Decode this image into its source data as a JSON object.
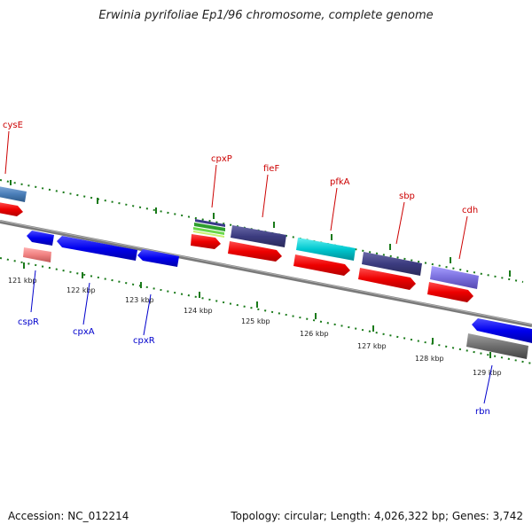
{
  "title": "Erwinia pyrifoliae Ep1/96 chromosome, complete genome",
  "footer": {
    "accession": "Accession: NC_012214",
    "topology": "Topology: circular; Length: 4,026,322 bp; Genes: 3,742"
  },
  "colors": {
    "backbone": "#808080",
    "tick_major": "#1a7a1a",
    "tick_minor": "#1a7a1a",
    "forward_label": "#cc0000",
    "reverse_label": "#0000cc"
  },
  "ticks": [
    {
      "label": "121 kbp"
    },
    {
      "label": "122 kbp"
    },
    {
      "label": "123 kbp"
    },
    {
      "label": "124 kbp"
    },
    {
      "label": "125 kbp"
    },
    {
      "label": "126 kbp"
    },
    {
      "label": "127 kbp"
    },
    {
      "label": "128 kbp"
    },
    {
      "label": "129 kbp"
    }
  ],
  "gene_labels": {
    "forward": [
      "cysE",
      "cpxP",
      "fieF",
      "pfkA",
      "sbp",
      "cdh"
    ],
    "reverse": [
      "cspR",
      "cpxA",
      "cpxR",
      "rbn"
    ]
  }
}
